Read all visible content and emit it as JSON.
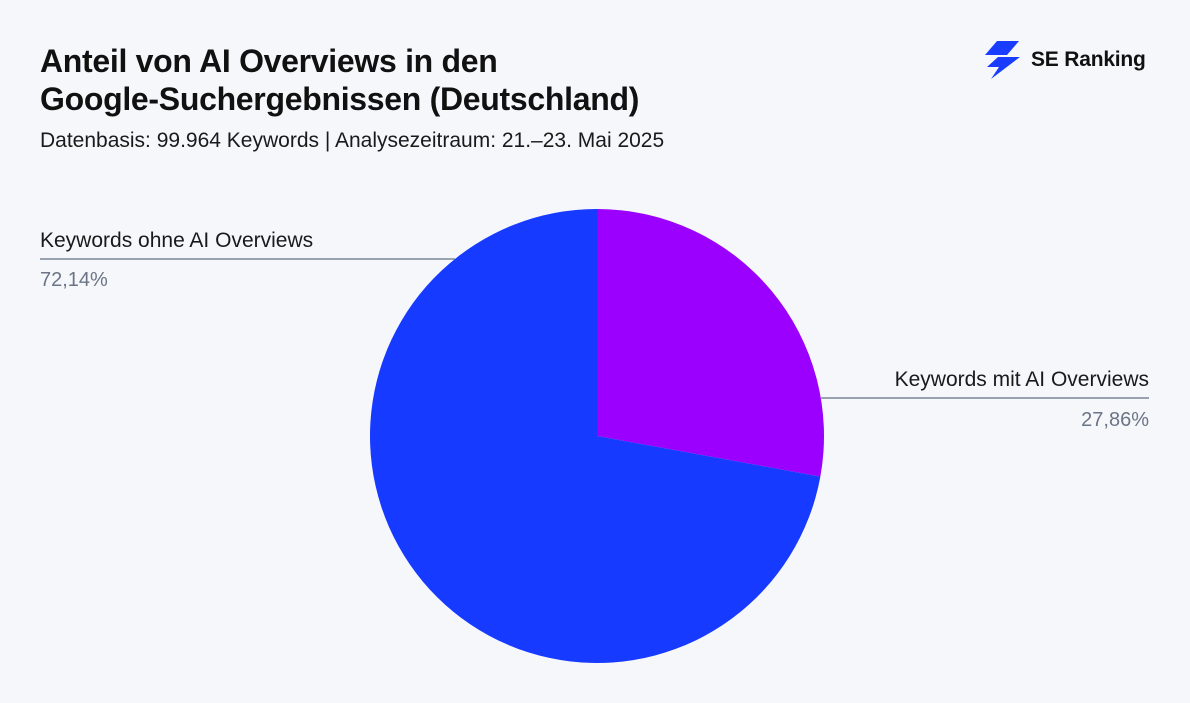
{
  "header": {
    "title_line1": "Anteil von AI Overviews in den",
    "title_line2": "Google-Suchergebnissen (Deutschland)",
    "subtitle": "Datenbasis: 99.964 Keywords | Analysezeitraum: 21.–23. Mai 2025"
  },
  "brand": {
    "name": "SE Ranking",
    "icon": "se-ranking-logo-icon",
    "color": "#1a3cff"
  },
  "chart_data": {
    "type": "pie",
    "title": "Anteil von AI Overviews in den Google-Suchergebnissen (Deutschland)",
    "subtitle": "Datenbasis: 99.964 Keywords | Analysezeitraum: 21.–23. Mai 2025",
    "start_angle_deg": 0,
    "direction": "clockwise",
    "slices": [
      {
        "label": "Keywords mit AI Overviews",
        "value": 27.86,
        "display": "27,86%",
        "color": "#9b00ff"
      },
      {
        "label": "Keywords ohne AI Overviews",
        "value": 72.14,
        "display": "72,14%",
        "color": "#163aff"
      }
    ]
  },
  "colors": {
    "background": "#f6f7fb",
    "leader_line": "#5f6f82",
    "value_text": "#6b7585"
  }
}
